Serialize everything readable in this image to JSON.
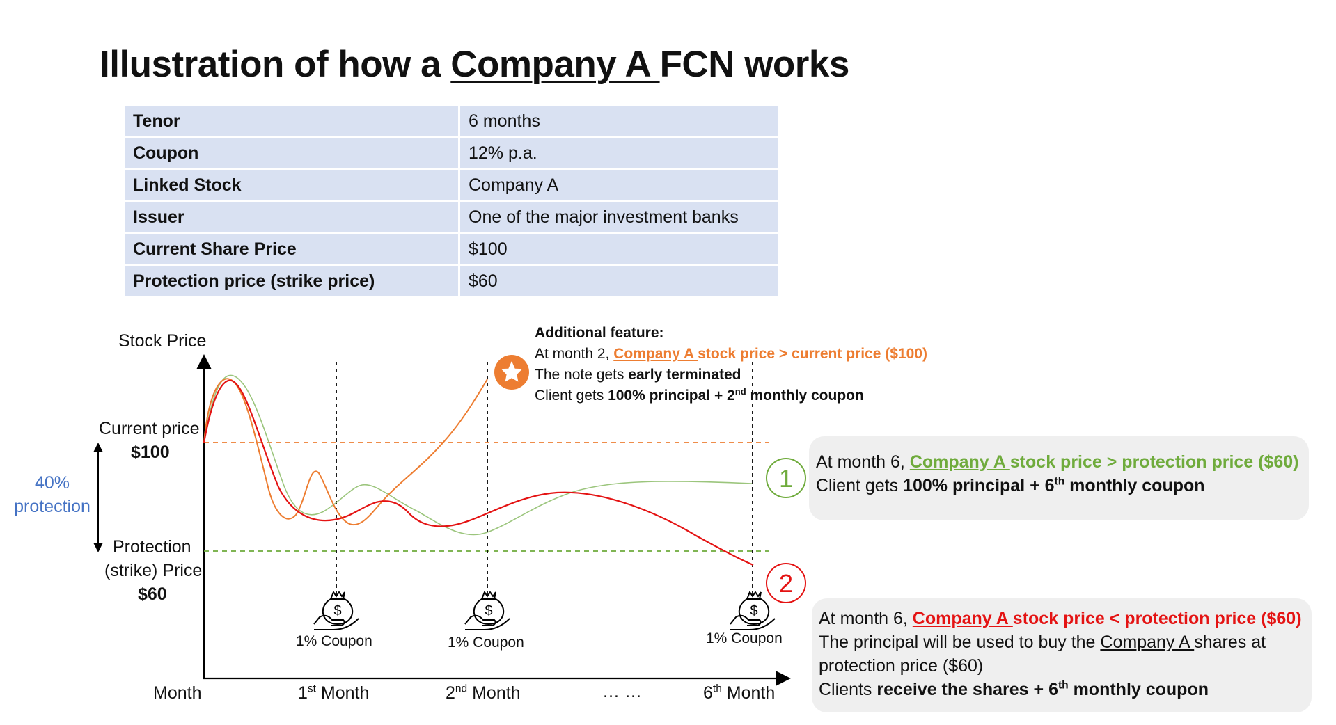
{
  "title": {
    "prefix": "Illustration of how a ",
    "company": "Company A ",
    "suffix": "FCN works"
  },
  "terms": [
    {
      "label": "Tenor",
      "value": "6 months"
    },
    {
      "label": "Coupon",
      "value": "12% p.a."
    },
    {
      "label": "Linked Stock",
      "value": "Company A"
    },
    {
      "label": "Issuer",
      "value": "One of the major investment banks"
    },
    {
      "label": "Current Share Price",
      "value": "$100"
    },
    {
      "label": "Protection price (strike price)",
      "value": "$60"
    }
  ],
  "chart": {
    "y_axis_label": "Stock Price",
    "x_axis_label": "Month",
    "current_price_label": "Current price",
    "current_price_value": "$100",
    "protection_label_line1": "Protection",
    "protection_label_line2": "(strike) Price",
    "protection_value": "$60",
    "protection_pct": "40%",
    "protection_word": "protection",
    "x_ticks": [
      {
        "num": "1",
        "sup": "st",
        "word": " Month"
      },
      {
        "num": "2",
        "sup": "nd",
        "word": " Month"
      },
      {
        "num": "… …",
        "sup": "",
        "word": ""
      },
      {
        "num": "6",
        "sup": "th",
        "word": " Month"
      }
    ],
    "coupon_label": "1% Coupon",
    "coupon_icon": "money-bag-hand-icon",
    "star_icon": "star-icon",
    "colors": {
      "red_path": "#e41313",
      "orange_path": "#ed7d31",
      "green_path": "#9bc57c",
      "current_line": "#ed7d31",
      "protection_line": "#6fab3c",
      "protection_text": "#4472c4"
    }
  },
  "feature": {
    "heading": "Additional feature:",
    "line1_prefix": "At month 2, ",
    "line1_company": "Company A ",
    "line1_rest": "stock price > current price ($100)",
    "line2_prefix": "The note gets ",
    "line2_bold": "early terminated",
    "line3_prefix": "Client gets ",
    "line3_bold": "100% principal + 2",
    "line3_sup": "nd",
    "line3_end": " monthly coupon"
  },
  "scenario1": {
    "number": "1",
    "line1_prefix": "At month 6, ",
    "line1_company": "Company A ",
    "line1_rest": "stock price > protection price ($60)",
    "line2_prefix": "Client gets ",
    "line2_bold": "100% principal + 6",
    "line2_sup": "th",
    "line2_end": " monthly coupon"
  },
  "scenario2": {
    "number": "2",
    "line1_prefix": "At month 6, ",
    "line1_company": "Company A ",
    "line1_rest": "stock price < protection price ($60)",
    "line2_prefix": "The principal will be used to buy the ",
    "line2_company": "Company A ",
    "line2_rest": "shares at",
    "line3": "protection price ($60)",
    "line4_prefix": "Clients ",
    "line4_bold": "receive the shares + 6",
    "line4_sup": "th",
    "line4_end": " monthly coupon"
  }
}
